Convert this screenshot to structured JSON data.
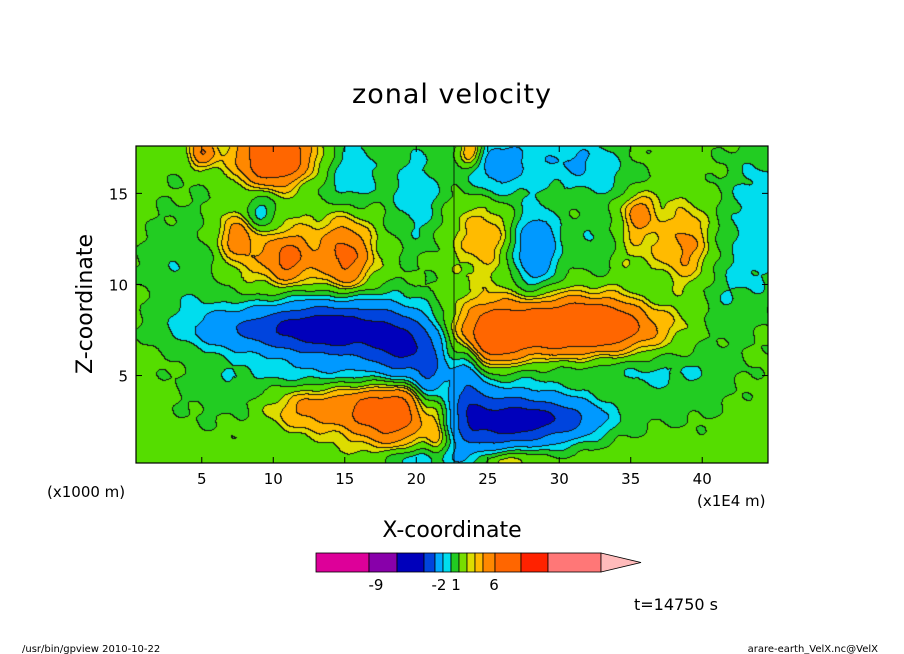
{
  "chart_data": {
    "type": "heatmap",
    "title": "zonal velocity",
    "xlabel": "X-coordinate",
    "ylabel": "Z-coordinate",
    "x_unit_left": "(x1000 m)",
    "x_unit_right": "(x1E4 m)",
    "xlim": [
      0.4,
      44.6
    ],
    "ylim": [
      0.2,
      17.6
    ],
    "xticks": [
      5,
      10,
      15,
      20,
      25,
      30,
      35,
      40
    ],
    "yticks": [
      5,
      10,
      15
    ],
    "xtick_labels": [
      "5",
      "10",
      "15",
      "20",
      "25",
      "30",
      "35",
      "40"
    ],
    "ytick_labels": [
      "5",
      "10",
      "15"
    ],
    "colorbar": {
      "colors": [
        "#dd0099",
        "#8800aa",
        "#0000bb",
        "#0044dd",
        "#00aaff",
        "#00ddee",
        "#22cc22",
        "#77dd00",
        "#dddd00",
        "#ffbb00",
        "#ff8800",
        "#ff6600",
        "#ff2200",
        "#ff7777",
        "#ffbbbb"
      ],
      "labels": [
        {
          "text": "-9",
          "value": -9
        },
        {
          "text": "-2",
          "value": -2
        },
        {
          "text": "1",
          "value": 1
        },
        {
          "text": "6",
          "value": 6
        }
      ]
    },
    "blobs": [
      {
        "x": 9.5,
        "y": 7.6,
        "sx": 4,
        "sy": 0.9,
        "v": -5
      },
      {
        "x": 15,
        "y": 7.6,
        "sx": 3.5,
        "sy": 1.3,
        "v": -8
      },
      {
        "x": 19,
        "y": 6.5,
        "sx": 1.5,
        "sy": 1.2,
        "v": -6
      },
      {
        "x": 21,
        "y": 4.5,
        "sx": 0.8,
        "sy": 2,
        "v": -5
      },
      {
        "x": 25.5,
        "y": 2.5,
        "sx": 2.5,
        "sy": 1.3,
        "v": -8
      },
      {
        "x": 30,
        "y": 2.7,
        "sx": 2.5,
        "sy": 0.9,
        "v": -6
      },
      {
        "x": 23.5,
        "y": 4.5,
        "sx": 0.8,
        "sy": 2,
        "v": -4
      },
      {
        "x": 28.3,
        "y": 12,
        "sx": 1.3,
        "sy": 1.6,
        "v": -6
      },
      {
        "x": 32.5,
        "y": 12,
        "sx": 1.3,
        "sy": 1.6,
        "v": -3
      },
      {
        "x": 25.5,
        "y": 16.5,
        "sx": 1.7,
        "sy": 1.4,
        "v": -4
      },
      {
        "x": 31,
        "y": 17,
        "sx": 2.5,
        "sy": 1,
        "v": -3
      },
      {
        "x": 15.5,
        "y": 16.5,
        "sx": 1.3,
        "sy": 1.6,
        "v": -2.5
      },
      {
        "x": 20,
        "y": 15,
        "sx": 1.5,
        "sy": 2.5,
        "v": -2.5
      },
      {
        "x": 9,
        "y": 14,
        "sx": 1,
        "sy": 0.8,
        "v": -3
      },
      {
        "x": 36,
        "y": 9,
        "sx": 1.5,
        "sy": 1.5,
        "v": -1.5
      },
      {
        "x": 20.5,
        "y": 0.4,
        "sx": 2,
        "sy": 0.5,
        "v": -3
      },
      {
        "x": 26.5,
        "y": 0.5,
        "sx": 1.5,
        "sy": 0.5,
        "v": 3
      },
      {
        "x": 18.5,
        "y": 3,
        "sx": 2.2,
        "sy": 1.2,
        "v": 6
      },
      {
        "x": 21.3,
        "y": 2.2,
        "sx": 0.6,
        "sy": 1.5,
        "v": 4
      },
      {
        "x": 13,
        "y": 3.2,
        "sx": 2.5,
        "sy": 0.8,
        "v": 3
      },
      {
        "x": 29,
        "y": 7.7,
        "sx": 4,
        "sy": 1.1,
        "v": 6
      },
      {
        "x": 34,
        "y": 7.9,
        "sx": 3,
        "sy": 1,
        "v": 4
      },
      {
        "x": 25,
        "y": 7,
        "sx": 1.5,
        "sy": 1.1,
        "v": 4
      },
      {
        "x": 34,
        "y": 11.5,
        "sx": 4,
        "sy": 1.5,
        "v": 1.5
      },
      {
        "x": 10,
        "y": 11.5,
        "sx": 4,
        "sy": 1.5,
        "v": 1.5
      },
      {
        "x": 7.5,
        "y": 12.8,
        "sx": 1,
        "sy": 1,
        "v": 3
      },
      {
        "x": 11,
        "y": 11.5,
        "sx": 1,
        "sy": 0.9,
        "v": 3.5
      },
      {
        "x": 15,
        "y": 11.5,
        "sx": 1.2,
        "sy": 1.5,
        "v": 4
      },
      {
        "x": 25,
        "y": 13,
        "sx": 1.8,
        "sy": 1.6,
        "v": 2
      },
      {
        "x": 39,
        "y": 12,
        "sx": 1.3,
        "sy": 1.8,
        "v": 3
      },
      {
        "x": 35.5,
        "y": 14,
        "sx": 0.8,
        "sy": 0.8,
        "v": 3
      },
      {
        "x": 10,
        "y": 17,
        "sx": 1.8,
        "sy": 1.3,
        "v": 7
      },
      {
        "x": 5,
        "y": 17.3,
        "sx": 0.7,
        "sy": 0.6,
        "v": 4
      },
      {
        "x": 23.8,
        "y": 17.3,
        "sx": 0.6,
        "sy": 0.6,
        "v": 4
      },
      {
        "x": 33,
        "y": 15.5,
        "sx": 2.5,
        "sy": 0.8,
        "v": -1.2
      },
      {
        "x": 12,
        "y": 15.3,
        "sx": 3,
        "sy": 0.7,
        "v": -1.2
      },
      {
        "x": 4,
        "y": 10.8,
        "sx": 2.5,
        "sy": 2,
        "v": -1.5
      },
      {
        "x": 40.5,
        "y": 10,
        "sx": 2.5,
        "sy": 2.5,
        "v": -1.5
      },
      {
        "x": 14,
        "y": 5.2,
        "sx": 5,
        "sy": 0.6,
        "v": -1.5
      },
      {
        "x": 33,
        "y": 5.3,
        "sx": 5,
        "sy": 0.7,
        "v": -1.5
      },
      {
        "x": 7,
        "y": 4,
        "sx": 3,
        "sy": 1.5,
        "v": -1.2
      },
      {
        "x": 38,
        "y": 4,
        "sx": 3,
        "sy": 1.5,
        "v": -1.2
      },
      {
        "x": 44,
        "y": 14,
        "sx": 1.5,
        "sy": 3,
        "v": -2
      }
    ],
    "base_value": 1,
    "base_bands": [
      {
        "x": 4,
        "y": 13,
        "sx": 2.5,
        "sy": 5,
        "v": -0.6
      },
      {
        "x": 42,
        "y": 13,
        "sx": 2.5,
        "sy": 5,
        "v": -0.6
      }
    ]
  },
  "annotations": {
    "time": "t=14750 s",
    "footer_left": "/usr/bin/gpview   2010-10-22",
    "footer_right": "arare-earth_VelX.nc@VelX"
  }
}
